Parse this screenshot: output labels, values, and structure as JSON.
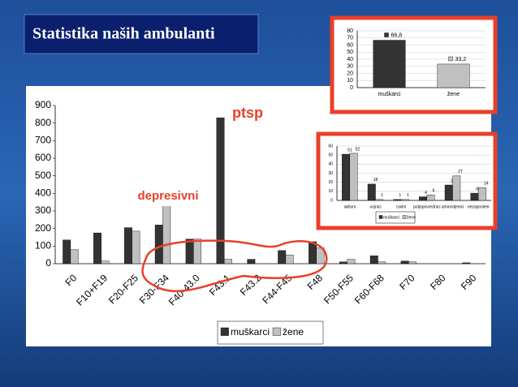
{
  "slide_title": "Statistika naših ambulanti",
  "chart_data": [
    {
      "type": "bar",
      "categories": [
        "F0",
        "F10+F19",
        "F20-F25",
        "F30-F34",
        "F40-43.0",
        "F43.1",
        "F43.2",
        "F44-F45",
        "F48",
        "F50-F55",
        "F60-F68",
        "F70",
        "F80",
        "F90"
      ],
      "series": [
        {
          "name": "muškarci",
          "color": "#333333",
          "values": [
            135,
            175,
            205,
            220,
            140,
            830,
            25,
            75,
            125,
            10,
            45,
            15,
            0,
            5
          ]
        },
        {
          "name": "žene",
          "color": "#c0c0c0",
          "values": [
            80,
            15,
            185,
            360,
            140,
            25,
            0,
            50,
            90,
            25,
            10,
            10,
            0,
            0
          ]
        }
      ],
      "ylim": [
        0,
        900
      ],
      "yticks": [
        0,
        100,
        200,
        300,
        400,
        500,
        600,
        700,
        800,
        900
      ],
      "grid": false,
      "legend": "bottom",
      "annotations": [
        "ptsp",
        "depresivni"
      ]
    },
    {
      "type": "bar",
      "categories": [
        "muškarci",
        "žene"
      ],
      "values": [
        66.8,
        33.2
      ],
      "value_labels": [
        "66,8",
        "33,2"
      ],
      "colors": [
        "#333333",
        "#c0c0c0"
      ],
      "ylim": [
        0,
        80
      ],
      "yticks": [
        0,
        10,
        20,
        30,
        40,
        50,
        60,
        70,
        80
      ],
      "grid": true
    },
    {
      "type": "bar",
      "categories": [
        "aktivni",
        "vojnici",
        "civilni",
        "poljoprivrednici",
        "umirovljenici",
        "nezaposleni"
      ],
      "series": [
        {
          "name": "muškarci",
          "color": "#333333",
          "values": [
            51,
            18,
            1,
            4,
            17,
            8
          ]
        },
        {
          "name": "žene",
          "color": "#c0c0c0",
          "values": [
            52,
            1,
            1,
            6,
            27,
            14
          ]
        }
      ],
      "ylim": [
        0,
        60
      ],
      "yticks": [
        0,
        10,
        20,
        30,
        40,
        50,
        60
      ],
      "grid": true,
      "legend": "bottom"
    }
  ]
}
